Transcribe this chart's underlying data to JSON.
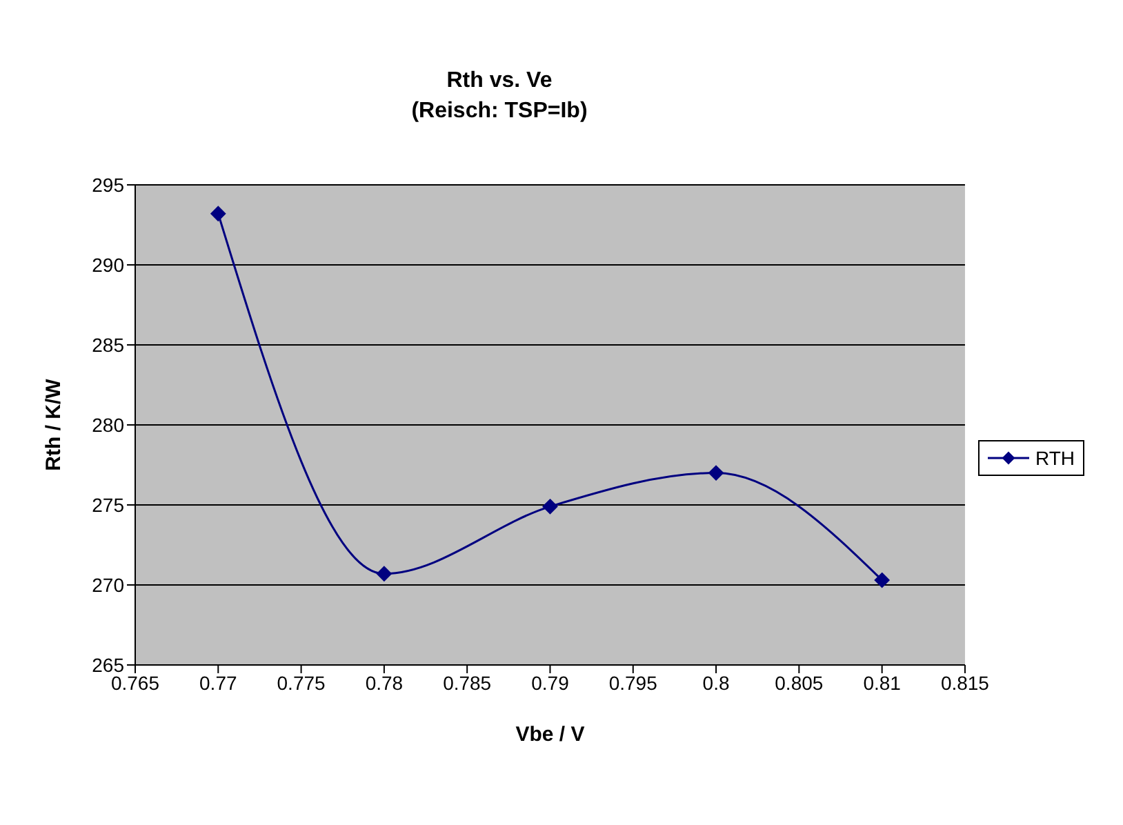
{
  "chart_data": {
    "type": "line",
    "title": "Rth vs. Ve",
    "subtitle": "(Reisch: TSP=Ib)",
    "xlabel": "Vbe / V",
    "ylabel": "Rth  / K/W",
    "x": [
      0.77,
      0.78,
      0.79,
      0.8,
      0.81
    ],
    "series": [
      {
        "name": "RTH",
        "color": "#000080",
        "values": [
          293.2,
          270.7,
          274.9,
          277.0,
          270.3
        ]
      }
    ],
    "xlim": [
      0.765,
      0.815
    ],
    "xticks": [
      0.765,
      0.77,
      0.775,
      0.78,
      0.785,
      0.79,
      0.795,
      0.8,
      0.805,
      0.81,
      0.815
    ],
    "ylim": [
      265,
      295
    ],
    "yticks": [
      265,
      270,
      275,
      280,
      285,
      290,
      295
    ],
    "grid": "y",
    "legend": "right",
    "marker": "diamond",
    "line_style": "solid"
  }
}
